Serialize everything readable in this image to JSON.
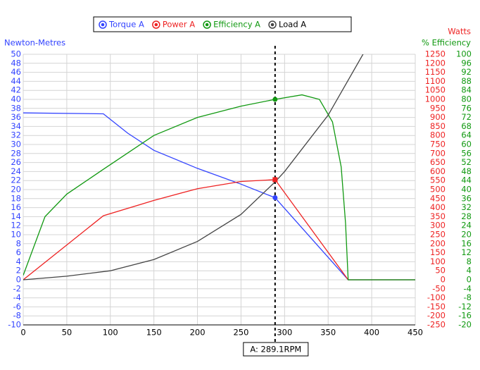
{
  "chart_data": {
    "type": "line",
    "legend": {
      "position": "top"
    },
    "ylabel": "Newton-Metres",
    "y2label": "Watts",
    "y3label": "% Efficiency",
    "xlim": [
      0,
      450
    ],
    "xticks": [
      0,
      50,
      100,
      150,
      200,
      250,
      300,
      350,
      400,
      450
    ],
    "ylim": [
      -10,
      50
    ],
    "yticks": [
      -10,
      -8,
      -6,
      -4,
      -2,
      0,
      2,
      4,
      6,
      8,
      10,
      12,
      14,
      16,
      18,
      20,
      22,
      24,
      26,
      28,
      30,
      32,
      34,
      36,
      38,
      40,
      42,
      44,
      46,
      48,
      50
    ],
    "y2lim": [
      -250,
      1250
    ],
    "y2ticks": [
      -250,
      -200,
      -150,
      -100,
      -50,
      0,
      50,
      100,
      150,
      200,
      250,
      300,
      350,
      400,
      450,
      500,
      550,
      600,
      650,
      700,
      750,
      800,
      850,
      900,
      950,
      1000,
      1050,
      1100,
      1150,
      1200,
      1250
    ],
    "y3lim": [
      -20,
      100
    ],
    "y3ticks": [
      -20,
      -16,
      -12,
      -8,
      -4,
      0,
      4,
      8,
      12,
      16,
      20,
      24,
      28,
      32,
      36,
      40,
      44,
      48,
      52,
      56,
      60,
      64,
      68,
      72,
      76,
      80,
      84,
      88,
      92,
      96,
      100
    ],
    "grid": true,
    "cursor": 289.1,
    "cursor_label": "A: 289.1RPM",
    "series": [
      {
        "name": "Torque A",
        "color": "#3344ff",
        "axis": "y",
        "marker": "circle",
        "x": [
          0,
          92,
          120,
          150,
          200,
          250,
          289.1,
          373,
          450
        ],
        "values": [
          37,
          36.8,
          32.5,
          28.7,
          24.7,
          21.2,
          18.2,
          0,
          0
        ]
      },
      {
        "name": "Power A",
        "color": "#ee2222",
        "axis": "y2",
        "marker": "square",
        "x": [
          0,
          92,
          150,
          200,
          250,
          289.1,
          373,
          450
        ],
        "values": [
          0,
          355,
          440,
          505,
          545,
          555,
          0,
          0
        ]
      },
      {
        "name": "Efficiency A",
        "color": "#119911",
        "axis": "y3",
        "marker": "circle",
        "x": [
          0,
          25,
          50,
          92,
          150,
          200,
          250,
          289.1,
          320,
          340,
          355,
          365,
          370,
          373,
          450
        ],
        "values": [
          2,
          28,
          38,
          49,
          64,
          72,
          77,
          80,
          82,
          80,
          70,
          50,
          25,
          0,
          0
        ]
      },
      {
        "name": "Load A",
        "color": "#444444",
        "axis": "y",
        "x": [
          0,
          50,
          100,
          150,
          200,
          250,
          289.1,
          300,
          350,
          393
        ],
        "values": [
          0,
          0.8,
          2,
          4.5,
          8.5,
          14.5,
          21.7,
          24,
          36.5,
          51
        ]
      }
    ]
  }
}
